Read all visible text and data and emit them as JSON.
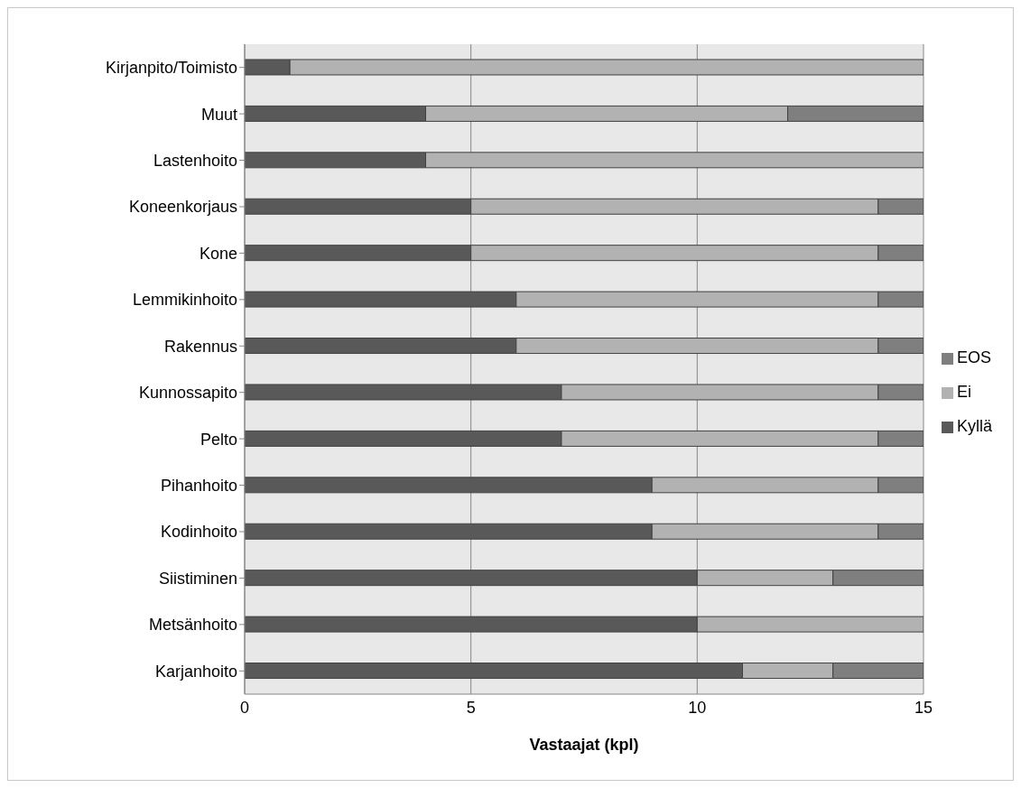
{
  "chart_data": {
    "type": "bar",
    "orientation": "horizontal",
    "stacked": true,
    "xlabel": "Vastaajat (kpl)",
    "categories": [
      "Kirjanpito/Toimisto",
      "Muut",
      "Lastenhoito",
      "Koneenkorjaus",
      "Kone",
      "Lemmikinhoito",
      "Rakennus",
      "Kunnossapito",
      "Pelto",
      "Pihanhoito",
      "Kodinhoito",
      "Siistiminen",
      "Metsänhoito",
      "Karjanhoito"
    ],
    "series": [
      {
        "name": "Kyllä",
        "color": "#595959",
        "values": [
          1,
          4,
          4,
          5,
          5,
          6,
          6,
          7,
          7,
          9,
          9,
          10,
          10,
          11
        ]
      },
      {
        "name": "Ei",
        "color": "#b2b2b2",
        "values": [
          14,
          8,
          11,
          9,
          9,
          8,
          8,
          7,
          7,
          5,
          5,
          3,
          5,
          2
        ]
      },
      {
        "name": "EOS",
        "color": "#7f7f7f",
        "values": [
          0,
          3,
          0,
          1,
          1,
          1,
          1,
          1,
          1,
          1,
          1,
          2,
          0,
          2
        ]
      }
    ],
    "xlim": [
      0,
      15
    ],
    "xticks": [
      0,
      5,
      10,
      15
    ],
    "grid": "x",
    "legend": "right"
  }
}
